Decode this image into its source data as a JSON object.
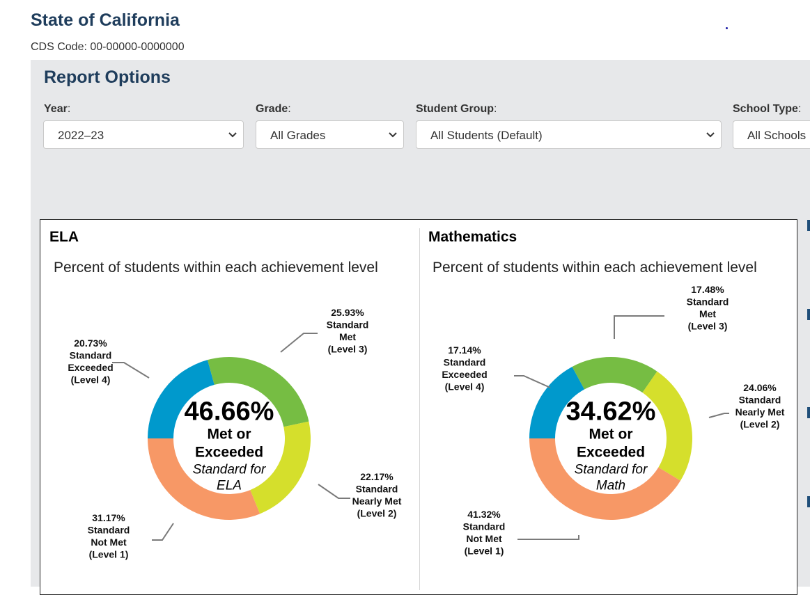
{
  "header": {
    "entity_name": "State of California",
    "cds_code": "CDS Code: 00-00000-0000000"
  },
  "report_options": {
    "title": "Report Options",
    "filters": [
      {
        "label": "Year",
        "value": "2022–23"
      },
      {
        "label": "Grade",
        "value": "All Grades"
      },
      {
        "label": "Student Group",
        "value": "All Students (Default)"
      },
      {
        "label": "School Type",
        "value": "All Schools"
      }
    ]
  },
  "colors": {
    "level4": "#0099cc",
    "level3": "#76bd43",
    "level2": "#d5df2c",
    "level1": "#f79866",
    "heading": "#1f3d5c"
  },
  "chart_data": [
    {
      "type": "pie",
      "title": "ELA",
      "subtitle": "Percent of students within each achievement level",
      "center": {
        "value": "46.66%",
        "line1": "Met or",
        "line2": "Exceeded",
        "line3": "Standard for",
        "line4": "ELA"
      },
      "slices": [
        {
          "label_lines": [
            "20.73%",
            "Standard",
            "Exceeded",
            "(Level 4)"
          ],
          "value": 20.73,
          "color": "#0099cc"
        },
        {
          "label_lines": [
            "25.93%",
            "Standard",
            "Met",
            "(Level 3)"
          ],
          "value": 25.93,
          "color": "#76bd43"
        },
        {
          "label_lines": [
            "22.17%",
            "Standard",
            "Nearly Met",
            "(Level 2)"
          ],
          "value": 22.17,
          "color": "#d5df2c"
        },
        {
          "label_lines": [
            "31.17%",
            "Standard",
            "Not Met",
            "(Level 1)"
          ],
          "value": 31.17,
          "color": "#f79866"
        }
      ]
    },
    {
      "type": "pie",
      "title": "Mathematics",
      "subtitle": "Percent of students within each achievement level",
      "center": {
        "value": "34.62%",
        "line1": "Met or",
        "line2": "Exceeded",
        "line3": "Standard for",
        "line4": "Math"
      },
      "slices": [
        {
          "label_lines": [
            "17.14%",
            "Standard",
            "Exceeded",
            "(Level 4)"
          ],
          "value": 17.14,
          "color": "#0099cc"
        },
        {
          "label_lines": [
            "17.48%",
            "Standard",
            "Met",
            "(Level 3)"
          ],
          "value": 17.48,
          "color": "#76bd43"
        },
        {
          "label_lines": [
            "24.06%",
            "Standard",
            "Nearly Met",
            "(Level 2)"
          ],
          "value": 24.06,
          "color": "#d5df2c"
        },
        {
          "label_lines": [
            "41.32%",
            "Standard",
            "Not Met",
            "(Level 1)"
          ],
          "value": 41.32,
          "color": "#f79866"
        }
      ]
    }
  ]
}
